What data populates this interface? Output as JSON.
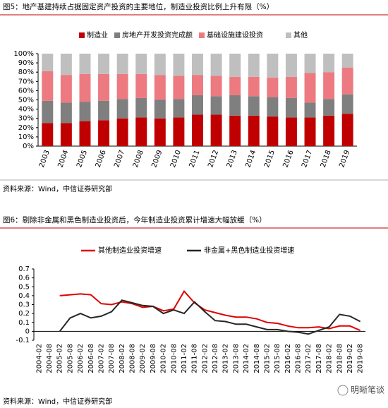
{
  "chart_data": [
    {
      "type": "bar",
      "stacked": true,
      "title": "图5：地产基建持续占据固定资产投资的主要地位，制造业投资比例上升有限（%）",
      "source": "资料来源：Wind，中信证券研究部",
      "categories": [
        "2003",
        "2004",
        "2005",
        "2006",
        "2007",
        "2008",
        "2009",
        "2010",
        "2011",
        "2012",
        "2013",
        "2014",
        "2015",
        "2016",
        "2017",
        "2018",
        "2019"
      ],
      "series": [
        {
          "name": "制造业",
          "color": "#c00000",
          "values": [
            25,
            25,
            27,
            28,
            30,
            31,
            30,
            31,
            34,
            34,
            33,
            33,
            32,
            31,
            31,
            33,
            35
          ]
        },
        {
          "name": "房地产开发投资完成额",
          "color": "#7f7f7f",
          "values": [
            24,
            22,
            21,
            21,
            21,
            21,
            20,
            20,
            21,
            20,
            22,
            21,
            21,
            21,
            16,
            18,
            21
          ]
        },
        {
          "name": "基础设施建设投资",
          "color": "#ec7a80",
          "values": [
            32,
            30,
            30,
            29,
            27,
            26,
            27,
            25,
            22,
            22,
            20,
            21,
            21,
            23,
            32,
            29,
            29
          ]
        },
        {
          "name": "其他",
          "color": "#bfbfbf",
          "values": [
            19,
            23,
            22,
            22,
            22,
            22,
            23,
            24,
            23,
            24,
            25,
            25,
            26,
            25,
            21,
            20,
            15
          ]
        }
      ],
      "ylim": [
        0,
        100
      ],
      "yticks": [
        {
          "value": 0,
          "label": "0%"
        },
        {
          "value": 10,
          "label": "10%"
        },
        {
          "value": 20,
          "label": "20%"
        },
        {
          "value": 30,
          "label": "30%"
        },
        {
          "value": 40,
          "label": "40%"
        },
        {
          "value": 50,
          "label": "50%"
        },
        {
          "value": 60,
          "label": "60%"
        },
        {
          "value": 70,
          "label": "70%"
        },
        {
          "value": 80,
          "label": "80%"
        },
        {
          "value": 90,
          "label": "90%"
        },
        {
          "value": 100,
          "label": "100%"
        }
      ],
      "grid": false,
      "legend": "top"
    },
    {
      "type": "line",
      "title": "图6：剔除非金属和黑色制造业投资后，今年制造业投资累计增速大幅放缓（%）",
      "source": "资料来源：Wind，中信证券研究部",
      "categories": [
        "2004-02",
        "2004-08",
        "2005-02",
        "2005-08",
        "2006-02",
        "2006-08",
        "2007-02",
        "2007-08",
        "2008-02",
        "2008-08",
        "2009-02",
        "2009-08",
        "2010-02",
        "2010-08",
        "2011-02",
        "2011-08",
        "2012-02",
        "2012-08",
        "2013-02",
        "2013-08",
        "2014-02",
        "2014-08",
        "2015-02",
        "2015-08",
        "2016-02",
        "2016-08",
        "2017-02",
        "2017-08",
        "2018-02",
        "2018-08",
        "2019-02",
        "2019-08"
      ],
      "series": [
        {
          "name": "其他制造业投资增速",
          "color": "#e00000",
          "values": [
            null,
            null,
            0.4,
            0.41,
            0.42,
            0.41,
            0.31,
            0.3,
            0.33,
            0.31,
            0.27,
            0.28,
            0.23,
            0.25,
            0.45,
            0.32,
            0.24,
            0.21,
            0.18,
            0.16,
            0.16,
            0.14,
            0.1,
            0.09,
            0.06,
            0.04,
            0.04,
            0.05,
            0.03,
            0.06,
            0.06,
            0.01
          ]
        },
        {
          "name": "非金属+黑色制造业投资增速",
          "color": "#262626",
          "values": [
            null,
            null,
            0.0,
            0.15,
            0.2,
            0.15,
            0.17,
            0.22,
            0.35,
            0.32,
            0.29,
            0.28,
            0.2,
            0.24,
            0.2,
            0.33,
            0.22,
            0.12,
            0.11,
            0.08,
            0.08,
            0.05,
            0.02,
            0.02,
            0.0,
            -0.01,
            -0.03,
            0.01,
            0.05,
            0.19,
            0.17,
            0.11
          ]
        }
      ],
      "ylim": [
        -0.1,
        0.7
      ],
      "yticks": [
        -0.1,
        0,
        0.1,
        0.2,
        0.3,
        0.4,
        0.5,
        0.6,
        0.7
      ],
      "grid": false,
      "legend": "top"
    }
  ],
  "watermark": "明晰笔谈"
}
